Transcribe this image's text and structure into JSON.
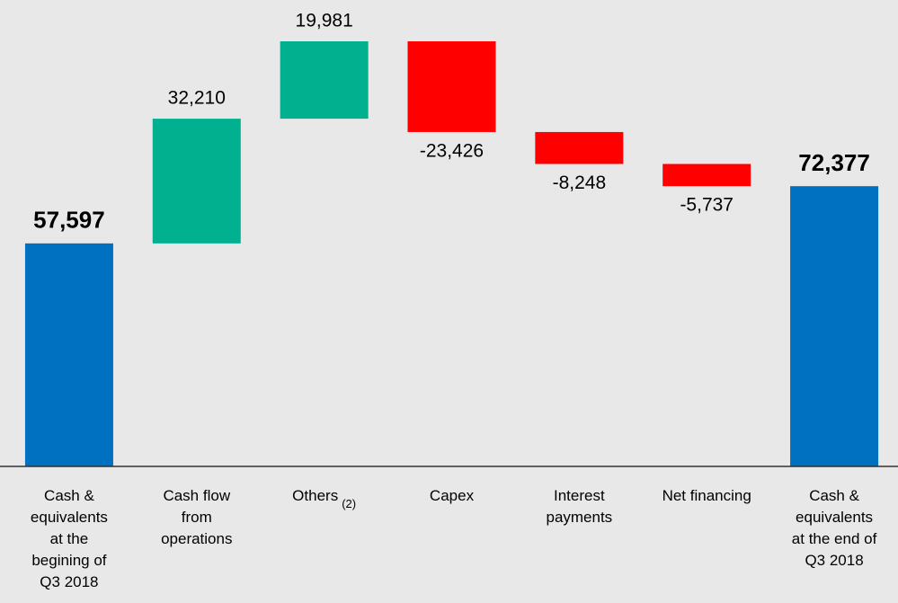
{
  "chart_data": {
    "type": "waterfall",
    "categories": [
      "Cash &\nequivalents\nat the\nbegining of\nQ3 2018",
      "Cash flow\nfrom\noperations",
      "Others",
      "Capex",
      "Interest\npayments",
      "Net financing",
      "Cash &\nequivalents\nat the end of\nQ3 2018"
    ],
    "category_notes": {
      "2": "(2)"
    },
    "measure": [
      "total",
      "relative",
      "relative",
      "relative",
      "relative",
      "relative",
      "total"
    ],
    "values": [
      57597,
      32210,
      19981,
      -23426,
      -8248,
      -5737,
      72377
    ],
    "value_labels": [
      "57,597",
      "32,210",
      "19,981",
      "-23,426",
      "-8,248",
      "-5,737",
      "72,377"
    ],
    "colors": {
      "total": "#0070c0",
      "increase": "#00b08f",
      "decrease": "#ff0000"
    },
    "ylim": [
      0,
      120000
    ]
  }
}
